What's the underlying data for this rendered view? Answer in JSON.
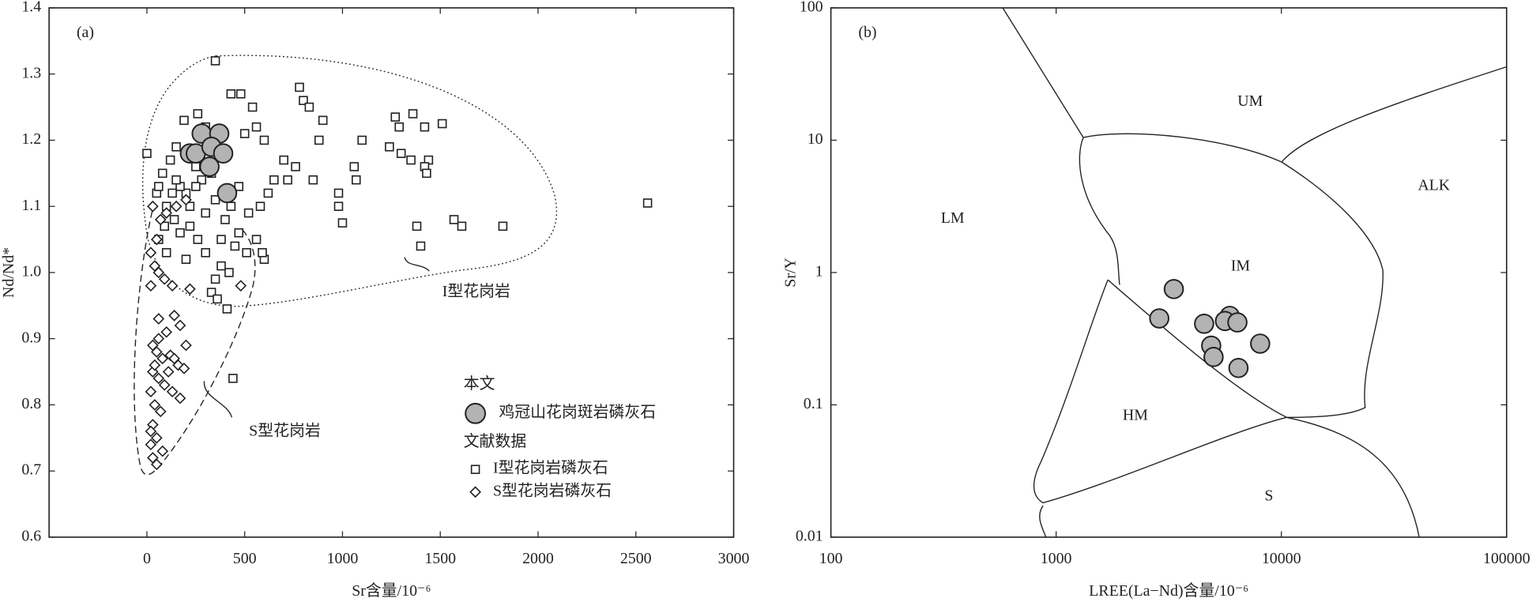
{
  "chart_data": [
    {
      "type": "scatter",
      "panel_label": "(a)",
      "xlabel": "Sr含量/10⁻⁶",
      "ylabel": "Nd/Nd*",
      "xlim": [
        -500,
        3000
      ],
      "ylim": [
        0.6,
        1.4
      ],
      "xticks": [
        0,
        500,
        1000,
        1500,
        2000,
        2500,
        3000
      ],
      "yticks": [
        0.6,
        0.7,
        0.8,
        0.9,
        {
          "value": 1,
          "label": "1.0"
        },
        1.1,
        1.2,
        1.3,
        1.4
      ],
      "legend_headings": [
        "本文",
        "文献数据"
      ],
      "annotations": [
        "I型花岗岩",
        "S型花岗岩"
      ],
      "series": [
        {
          "name": "鸡冠山花岗斑岩磷灰石",
          "marker": "circle",
          "color": "#b3b3b3",
          "x": [
            280,
            370,
            220,
            250,
            330,
            390,
            320,
            410
          ],
          "y": [
            1.21,
            1.21,
            1.18,
            1.18,
            1.19,
            1.18,
            1.16,
            1.12
          ]
        },
        {
          "name": "I型花岗岩磷灰石",
          "marker": "square",
          "color": "#ffffff",
          "x": [
            350,
            2560,
            440,
            410,
            0,
            1380,
            1400,
            1610,
            1820,
            1570,
            1510,
            1360,
            1270,
            1290,
            1420,
            1440,
            1420,
            1430,
            1240,
            1300,
            1350,
            1100,
            1060,
            1070,
            980,
            1000,
            980,
            900,
            850,
            780,
            800,
            830,
            880,
            760,
            700,
            720,
            650,
            600,
            560,
            540,
            480,
            430,
            500,
            620,
            580,
            520,
            470,
            560,
            600,
            590,
            510,
            450,
            420,
            380,
            350,
            330,
            360,
            300,
            260,
            220,
            170,
            140,
            100,
            50,
            80,
            120,
            150,
            190,
            260,
            300,
            280,
            250,
            200,
            170,
            130,
            90,
            60,
            300,
            350,
            400,
            430,
            470,
            380,
            220,
            330,
            250,
            100,
            200,
            150,
            60
          ],
          "y": [
            1.32,
            1.105,
            0.84,
            0.945,
            1.18,
            1.07,
            1.04,
            1.07,
            1.07,
            1.08,
            1.225,
            1.24,
            1.235,
            1.22,
            1.22,
            1.17,
            1.16,
            1.15,
            1.19,
            1.18,
            1.17,
            1.2,
            1.16,
            1.14,
            1.12,
            1.075,
            1.1,
            1.23,
            1.14,
            1.28,
            1.26,
            1.25,
            1.2,
            1.16,
            1.17,
            1.14,
            1.14,
            1.2,
            1.22,
            1.25,
            1.27,
            1.27,
            1.21,
            1.12,
            1.1,
            1.09,
            1.06,
            1.05,
            1.02,
            1.03,
            1.03,
            1.04,
            1.0,
            1.01,
            0.99,
            0.97,
            0.96,
            1.03,
            1.05,
            1.07,
            1.06,
            1.08,
            1.1,
            1.12,
            1.15,
            1.17,
            1.19,
            1.23,
            1.24,
            1.22,
            1.14,
            1.13,
            1.12,
            1.13,
            1.12,
            1.07,
            1.05,
            1.09,
            1.11,
            1.08,
            1.1,
            1.13,
            1.05,
            1.1,
            1.15,
            1.16,
            1.03,
            1.02,
            1.14,
            1.13
          ]
        },
        {
          "name": "S型花岗岩磷灰石",
          "marker": "diamond",
          "color": "#ffffff",
          "x": [
            20,
            40,
            60,
            90,
            130,
            220,
            480,
            20,
            50,
            70,
            100,
            150,
            200,
            30,
            60,
            100,
            140,
            170,
            200,
            30,
            50,
            80,
            120,
            160,
            190,
            30,
            60,
            90,
            130,
            170,
            20,
            40,
            70,
            30,
            20,
            50,
            80,
            30,
            50,
            20,
            140,
            110,
            60,
            40
          ],
          "y": [
            1.03,
            1.01,
            1.0,
            0.99,
            0.98,
            0.975,
            0.98,
            0.98,
            1.05,
            1.08,
            1.09,
            1.1,
            1.11,
            1.1,
            0.93,
            0.91,
            0.935,
            0.92,
            0.89,
            0.89,
            0.88,
            0.87,
            0.875,
            0.86,
            0.855,
            0.85,
            0.84,
            0.83,
            0.82,
            0.81,
            0.82,
            0.8,
            0.79,
            0.77,
            0.76,
            0.75,
            0.73,
            0.72,
            0.71,
            0.74,
            0.87,
            0.85,
            0.9,
            0.86
          ]
        }
      ]
    },
    {
      "type": "scatter",
      "panel_label": "(b)",
      "xlabel": "LREE(La−Nd)含量/10⁻⁶",
      "ylabel": "Sr/Y",
      "xscale": "log",
      "yscale": "log",
      "xlim": [
        100,
        100000
      ],
      "ylim": [
        0.01,
        100
      ],
      "xticks": [
        100,
        1000,
        10000,
        100000
      ],
      "yticks": [
        0.01,
        0.1,
        1,
        10,
        100
      ],
      "annotations": [
        "UM",
        "LM",
        "ALK",
        "IM",
        "HM",
        "S"
      ],
      "series": [
        {
          "marker": "circle",
          "color": "#b3b3b3",
          "x": [
            3330,
            2870,
            4540,
            5900,
            5620,
            6380,
            8050,
            4880,
            5000,
            6450
          ],
          "y": [
            0.75,
            0.45,
            0.41,
            0.47,
            0.43,
            0.42,
            0.29,
            0.28,
            0.23,
            0.19
          ]
        }
      ]
    }
  ]
}
